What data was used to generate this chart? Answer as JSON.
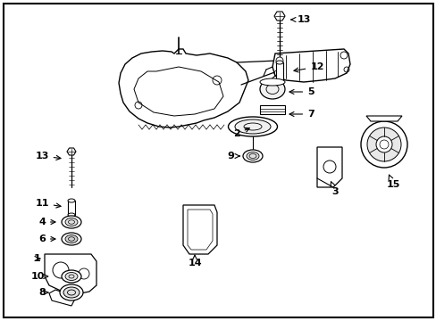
{
  "background_color": "#ffffff",
  "border_color": "#000000",
  "figsize": [
    4.89,
    3.6
  ],
  "dpi": 100
}
